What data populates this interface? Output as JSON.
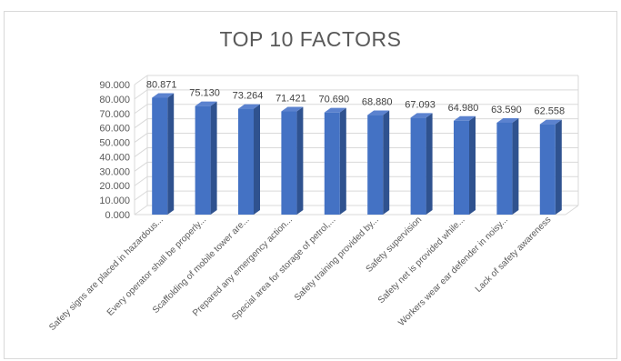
{
  "chart_data": {
    "type": "bar",
    "title": "TOP 10 FACTORS",
    "categories": [
      "Safety signs are placed in hazardous...",
      "Every operator shall be properly...",
      "Scaffolding of mobile tower are...",
      "Prepared any emergency action...",
      "Special area for storage of petrol,...",
      "Safety training provided by...",
      "Safety supervision",
      "Safety net is provided while...",
      "Workers wear ear defender in noisy...",
      "Lack of safety awareness"
    ],
    "values": [
      80.871,
      75.13,
      73.264,
      71.421,
      70.69,
      68.88,
      67.093,
      64.98,
      63.59,
      62.558
    ],
    "data_labels": [
      "80.871",
      "75.130",
      "73.264",
      "71.421",
      "70.690",
      "68.880",
      "67.093",
      "64.980",
      "63.590",
      "62.558"
    ],
    "y_ticks": [
      "0.000",
      "10.000",
      "20.000",
      "30.000",
      "40.000",
      "50.000",
      "60.000",
      "70.000",
      "80.000",
      "90.000"
    ],
    "ylim": [
      0,
      90
    ],
    "grid": true,
    "style": "3d-column",
    "colors": {
      "front": "#4472c4",
      "side": "#2f528f",
      "top": "#5b82cf",
      "grid": "#d9d9d9"
    }
  }
}
